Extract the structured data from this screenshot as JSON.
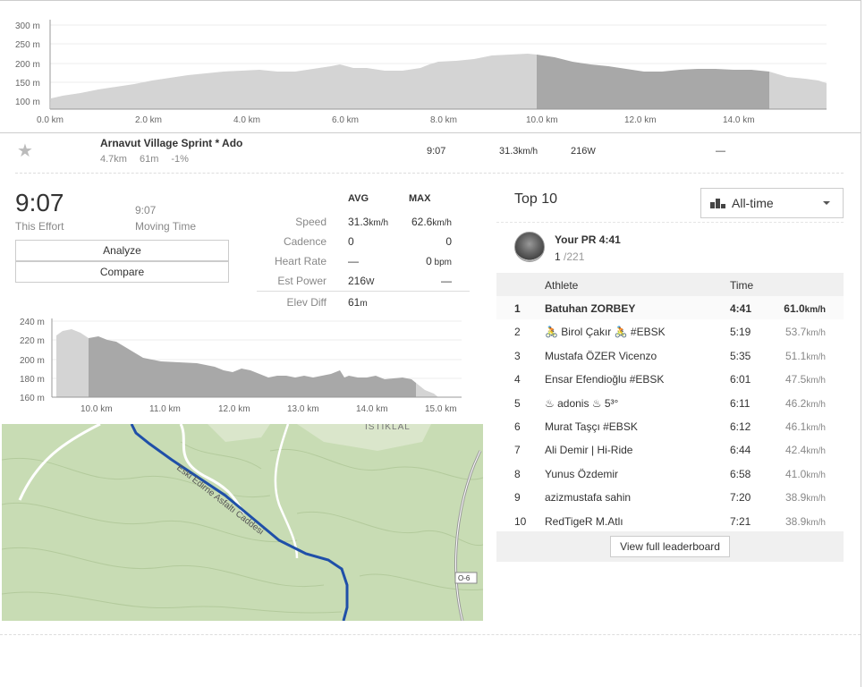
{
  "elevation_profile": {
    "y_ticks": [
      "300 m",
      "250 m",
      "200 m",
      "150 m",
      "100 m"
    ],
    "x_ticks": [
      "0.0 km",
      "2.0 km",
      "4.0 km",
      "6.0 km",
      "8.0 km",
      "10.0 km",
      "12.0 km",
      "14.0 km"
    ]
  },
  "segment": {
    "name": "Arnavut Village Sprint * Ado",
    "distance": "4.7km",
    "elev_gain": "61m",
    "grade": "-1%",
    "time": "9:07",
    "speed": "31.3",
    "speed_unit": "km/h",
    "power": "216",
    "power_unit": "W",
    "extra": "—"
  },
  "effort": {
    "time": "9:07",
    "time_label": "This Effort",
    "moving_time": "9:07",
    "moving_label": "Moving Time",
    "analyze_label": "Analyze",
    "compare_label": "Compare"
  },
  "stats": {
    "avg_header": "AVG",
    "max_header": "MAX",
    "rows": [
      {
        "label": "Speed",
        "avg": "31.3",
        "avg_unit": "km/h",
        "max": "62.6",
        "max_unit": "km/h"
      },
      {
        "label": "Cadence",
        "avg": "0",
        "avg_unit": "",
        "max": "0",
        "max_unit": ""
      },
      {
        "label": "Heart Rate",
        "avg": "—",
        "avg_unit": "",
        "max": "0",
        "max_unit": " bpm"
      },
      {
        "label": "Est Power",
        "avg": "216",
        "avg_unit": "W",
        "max": "—",
        "max_unit": ""
      },
      {
        "label": "Elev Diff",
        "avg": "61",
        "avg_unit": "m",
        "max": "",
        "max_unit": ""
      }
    ]
  },
  "segment_profile": {
    "y_ticks": [
      "240 m",
      "220 m",
      "200 m",
      "180 m",
      "160 m"
    ],
    "x_ticks": [
      "10.0 km",
      "11.0 km",
      "12.0 km",
      "13.0 km",
      "14.0 km",
      "15.0 km"
    ]
  },
  "map": {
    "road_label": "Eski Edirne Asfaltı Caddesi",
    "district_label": "İSTİKLAL",
    "highway_label": "O-6"
  },
  "leaderboard": {
    "title": "Top 10",
    "filter": "All-time",
    "pr_label": "Your PR 4:41",
    "pr_rank": "1",
    "pr_total": "/221",
    "col_athlete": "Athlete",
    "col_time": "Time",
    "rows": [
      {
        "rank": "1",
        "athlete": "Batuhan ZORBEY",
        "time": "4:41",
        "speed": "61.0",
        "unit": "km/h"
      },
      {
        "rank": "2",
        "athlete": "🚴 Birol Çakır 🚴 #EBSK",
        "time": "5:19",
        "speed": "53.7",
        "unit": "km/h"
      },
      {
        "rank": "3",
        "athlete": "Mustafa ÖZER Vicenzo",
        "time": "5:35",
        "speed": "51.1",
        "unit": "km/h"
      },
      {
        "rank": "4",
        "athlete": "Ensar Efendioğlu #EBSK",
        "time": "6:01",
        "speed": "47.5",
        "unit": "km/h"
      },
      {
        "rank": "5",
        "athlete": "♨ adonis ♨ 5³°",
        "time": "6:11",
        "speed": "46.2",
        "unit": "km/h"
      },
      {
        "rank": "6",
        "athlete": "Murat Taşçı #EBSK",
        "time": "6:12",
        "speed": "46.1",
        "unit": "km/h"
      },
      {
        "rank": "7",
        "athlete": "Ali Demir | Hi-Ride",
        "time": "6:44",
        "speed": "42.4",
        "unit": "km/h"
      },
      {
        "rank": "8",
        "athlete": "Yunus Özdemir",
        "time": "6:58",
        "speed": "41.0",
        "unit": "km/h"
      },
      {
        "rank": "9",
        "athlete": "azizmustafa sahin",
        "time": "7:20",
        "speed": "38.9",
        "unit": "km/h"
      },
      {
        "rank": "10",
        "athlete": "RedTigeR M.Atlı",
        "time": "7:21",
        "speed": "38.9",
        "unit": "km/h"
      }
    ],
    "view_full_label": "View full leaderboard"
  },
  "colors": {
    "elevation_fill": "#d4d4d4",
    "segment_fill": "#a8a8a8",
    "route": "#1f4fa8",
    "map_green": "#c8dcb4"
  }
}
